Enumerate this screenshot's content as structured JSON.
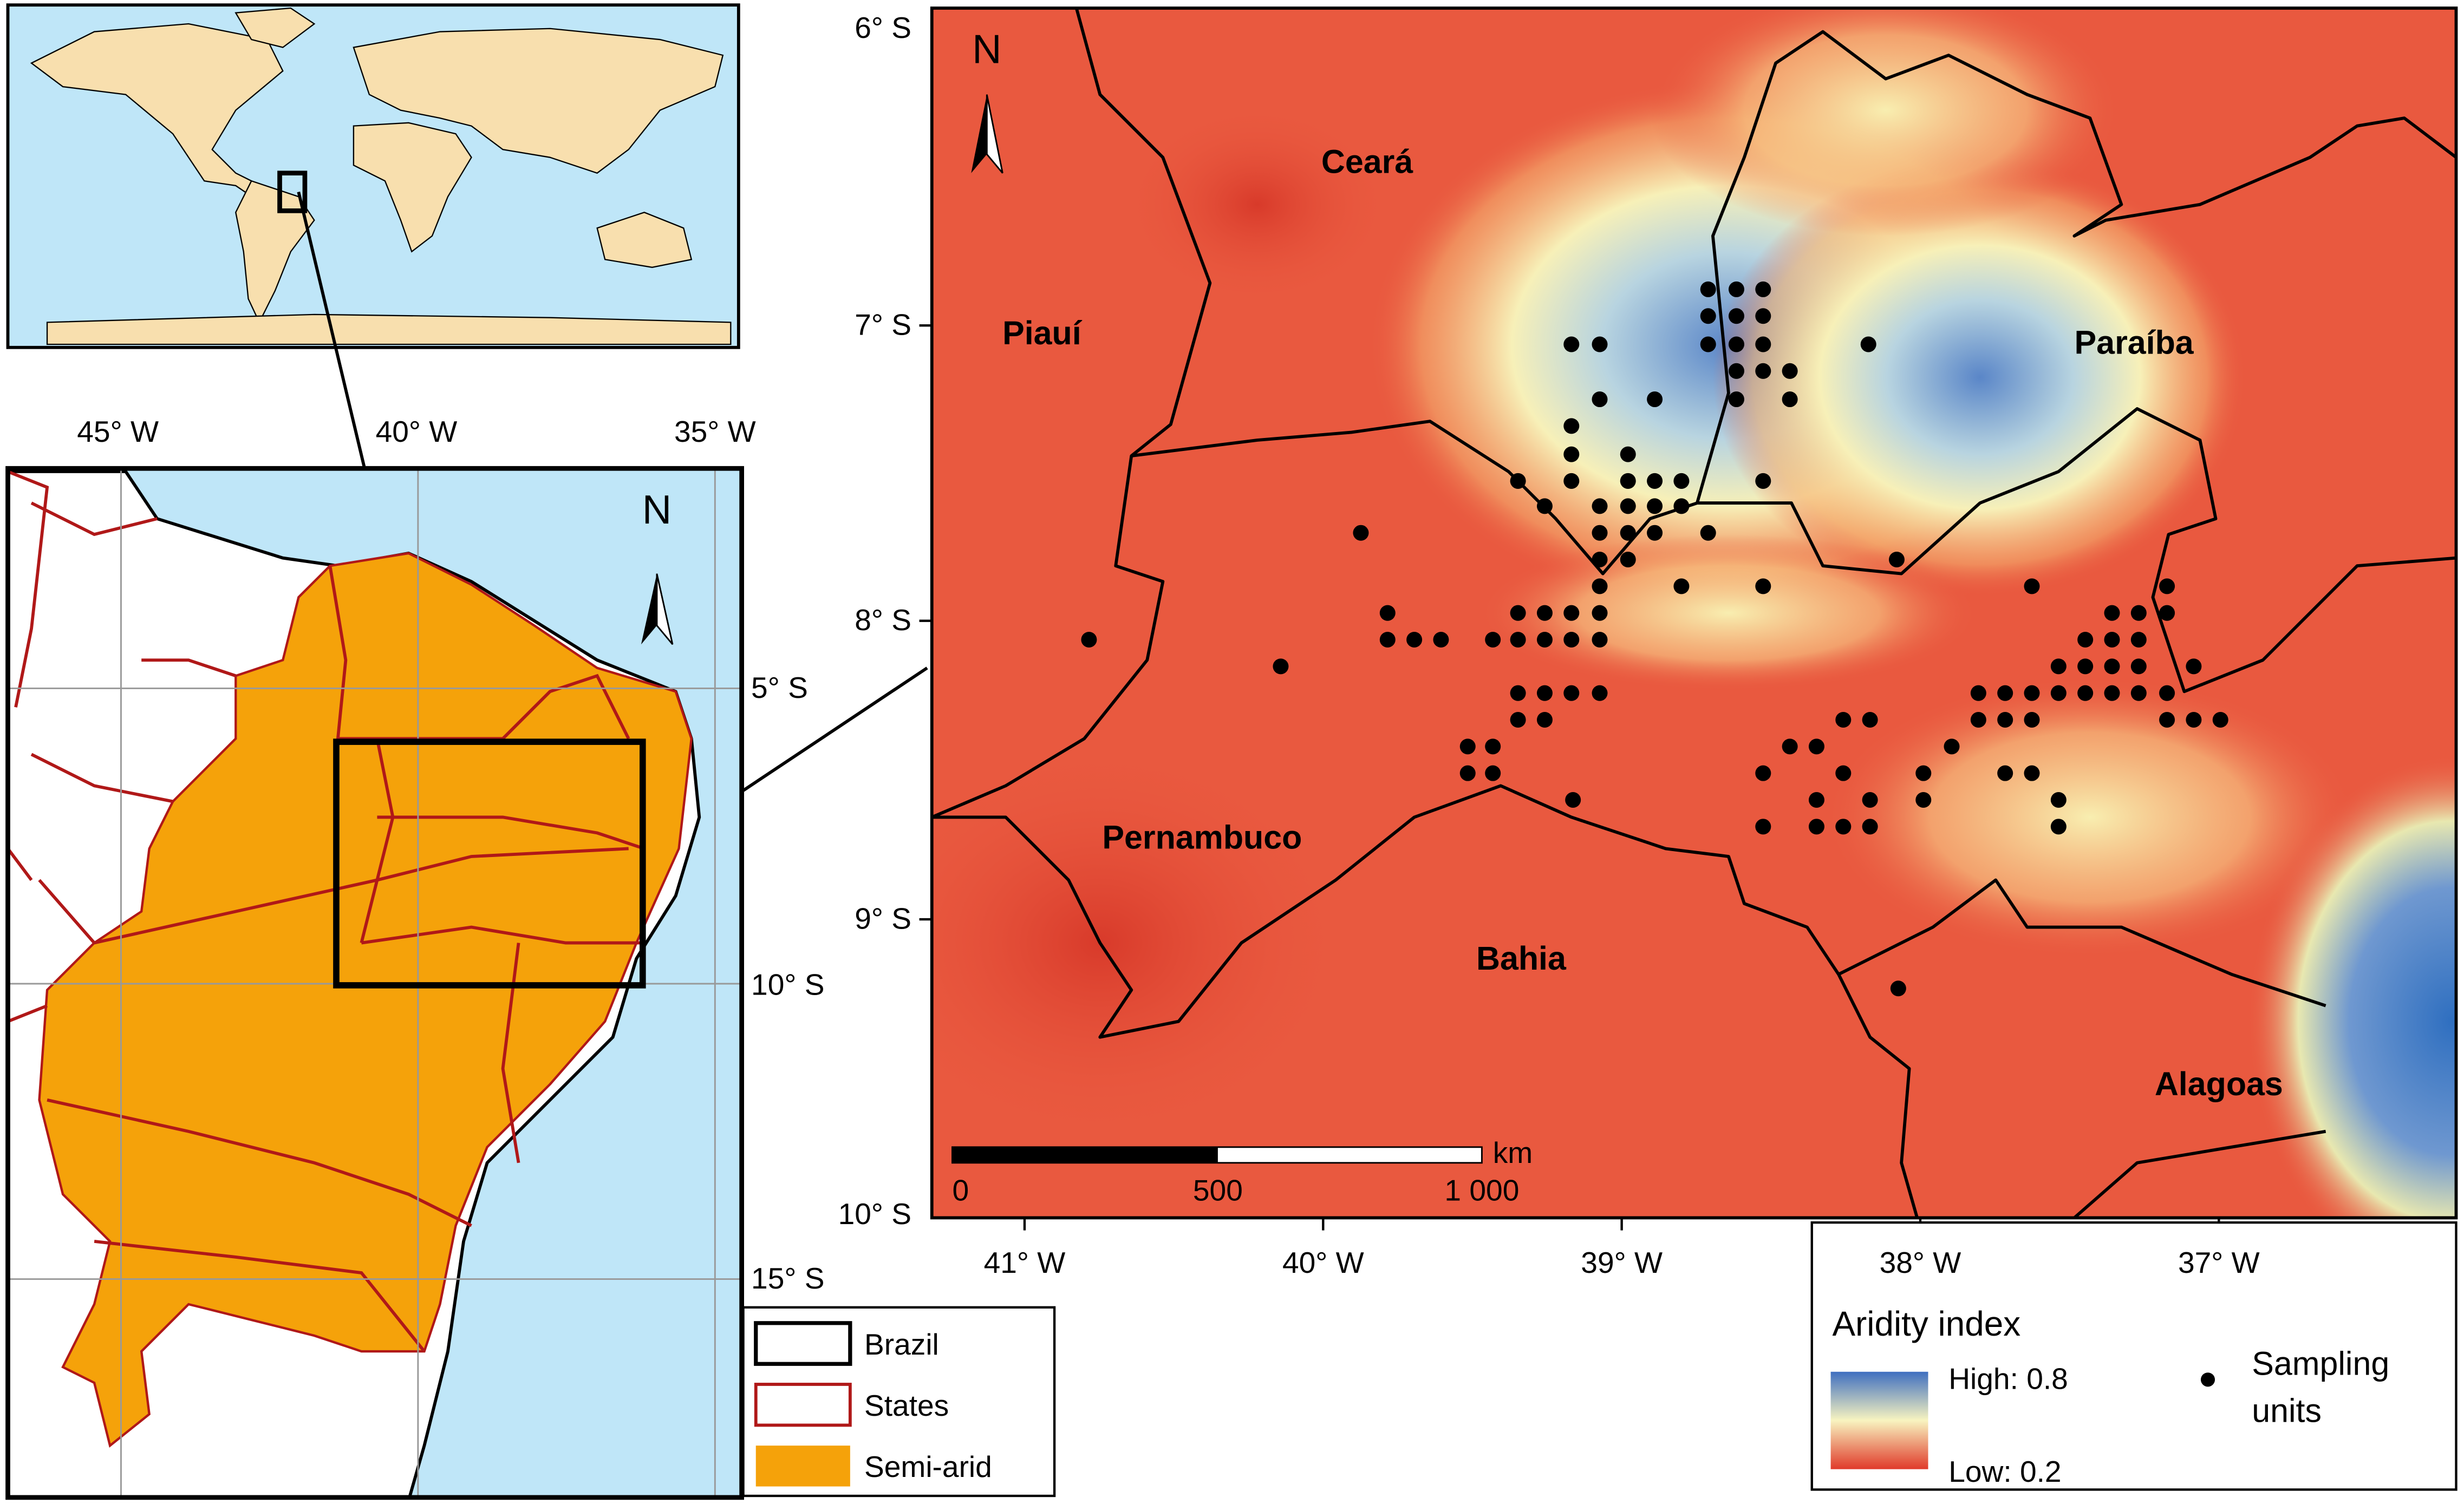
{
  "inset_map": {
    "lon_labels": [
      "45° W",
      "40° W",
      "35° W"
    ],
    "lat_labels": [
      "5° S",
      "10° S",
      "15° S"
    ],
    "north": "N"
  },
  "legend_left": [
    "Brazil",
    "States",
    "Semi-arid"
  ],
  "main_map": {
    "lat_labels": [
      "6° S",
      "7° S",
      "8° S",
      "9° S",
      "10° S"
    ],
    "lon_labels": [
      "41° W",
      "40° W",
      "39° W",
      "38° W",
      "37° W"
    ],
    "north": "N",
    "places": [
      "Ceará",
      "Piauí",
      "Paraíba",
      "Pernambuco",
      "Bahia",
      "Alagoas"
    ],
    "scale_bar": {
      "unit": "km",
      "labels": [
        "0",
        "500",
        "1 000"
      ]
    }
  },
  "legend_right": {
    "title": "Aridity index",
    "high": "High: 0.8",
    "low": "Low: 0.2",
    "points": "Sampling units"
  }
}
